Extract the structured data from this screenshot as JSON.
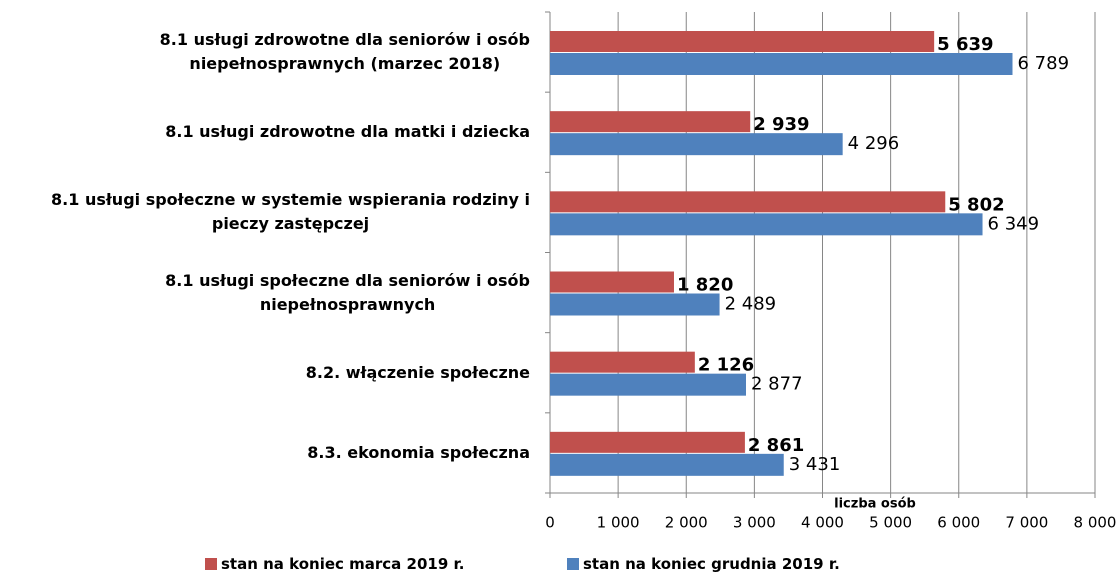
{
  "chart_data": {
    "type": "hbar",
    "categories": [
      "8.1 usługi zdrowotne dla seniorów i osób\nniepełnosprawnych (marzec 2018)",
      "8.1 usługi zdrowotne dla matki i dziecka",
      "8.1 usługi społeczne w systemie wspierania rodziny i\npieczy zastępczej",
      "8.1 usługi społeczne dla seniorów i osób\nniepełnosprawnych",
      "8.2. włączenie społeczne",
      "8.3. ekonomia społeczna"
    ],
    "series": [
      {
        "name": "stan na koniec marca 2019 r.",
        "color": "#c0504d",
        "values": [
          5639,
          2939,
          5802,
          1820,
          2126,
          2861
        ],
        "value_labels": [
          "5 639",
          "2 939",
          "5 802",
          "1 820",
          "2 126",
          "2 861"
        ]
      },
      {
        "name": "stan na koniec grudnia 2019 r.",
        "color": "#4f81bd",
        "values": [
          6789,
          4296,
          6349,
          2489,
          2877,
          3431
        ],
        "value_labels": [
          "6 789",
          "4 296",
          "6 349",
          "2 489",
          "2 877",
          "3 431"
        ]
      }
    ],
    "x_label": "liczba osób",
    "xlim": [
      0,
      8000
    ],
    "xticks": [
      0,
      {
        "value": 1000,
        "label": "1 000"
      },
      {
        "value": 2000,
        "label": "2 000"
      },
      {
        "value": 3000,
        "label": "3 000"
      },
      {
        "value": 4000,
        "label": "4 000"
      },
      {
        "value": 5000,
        "label": "5 000"
      },
      {
        "value": 6000,
        "label": "6 000"
      },
      {
        "value": 7000,
        "label": "7 000"
      },
      {
        "value": 8000,
        "label": "8 000"
      }
    ],
    "grid": true,
    "legend": "bottom"
  }
}
